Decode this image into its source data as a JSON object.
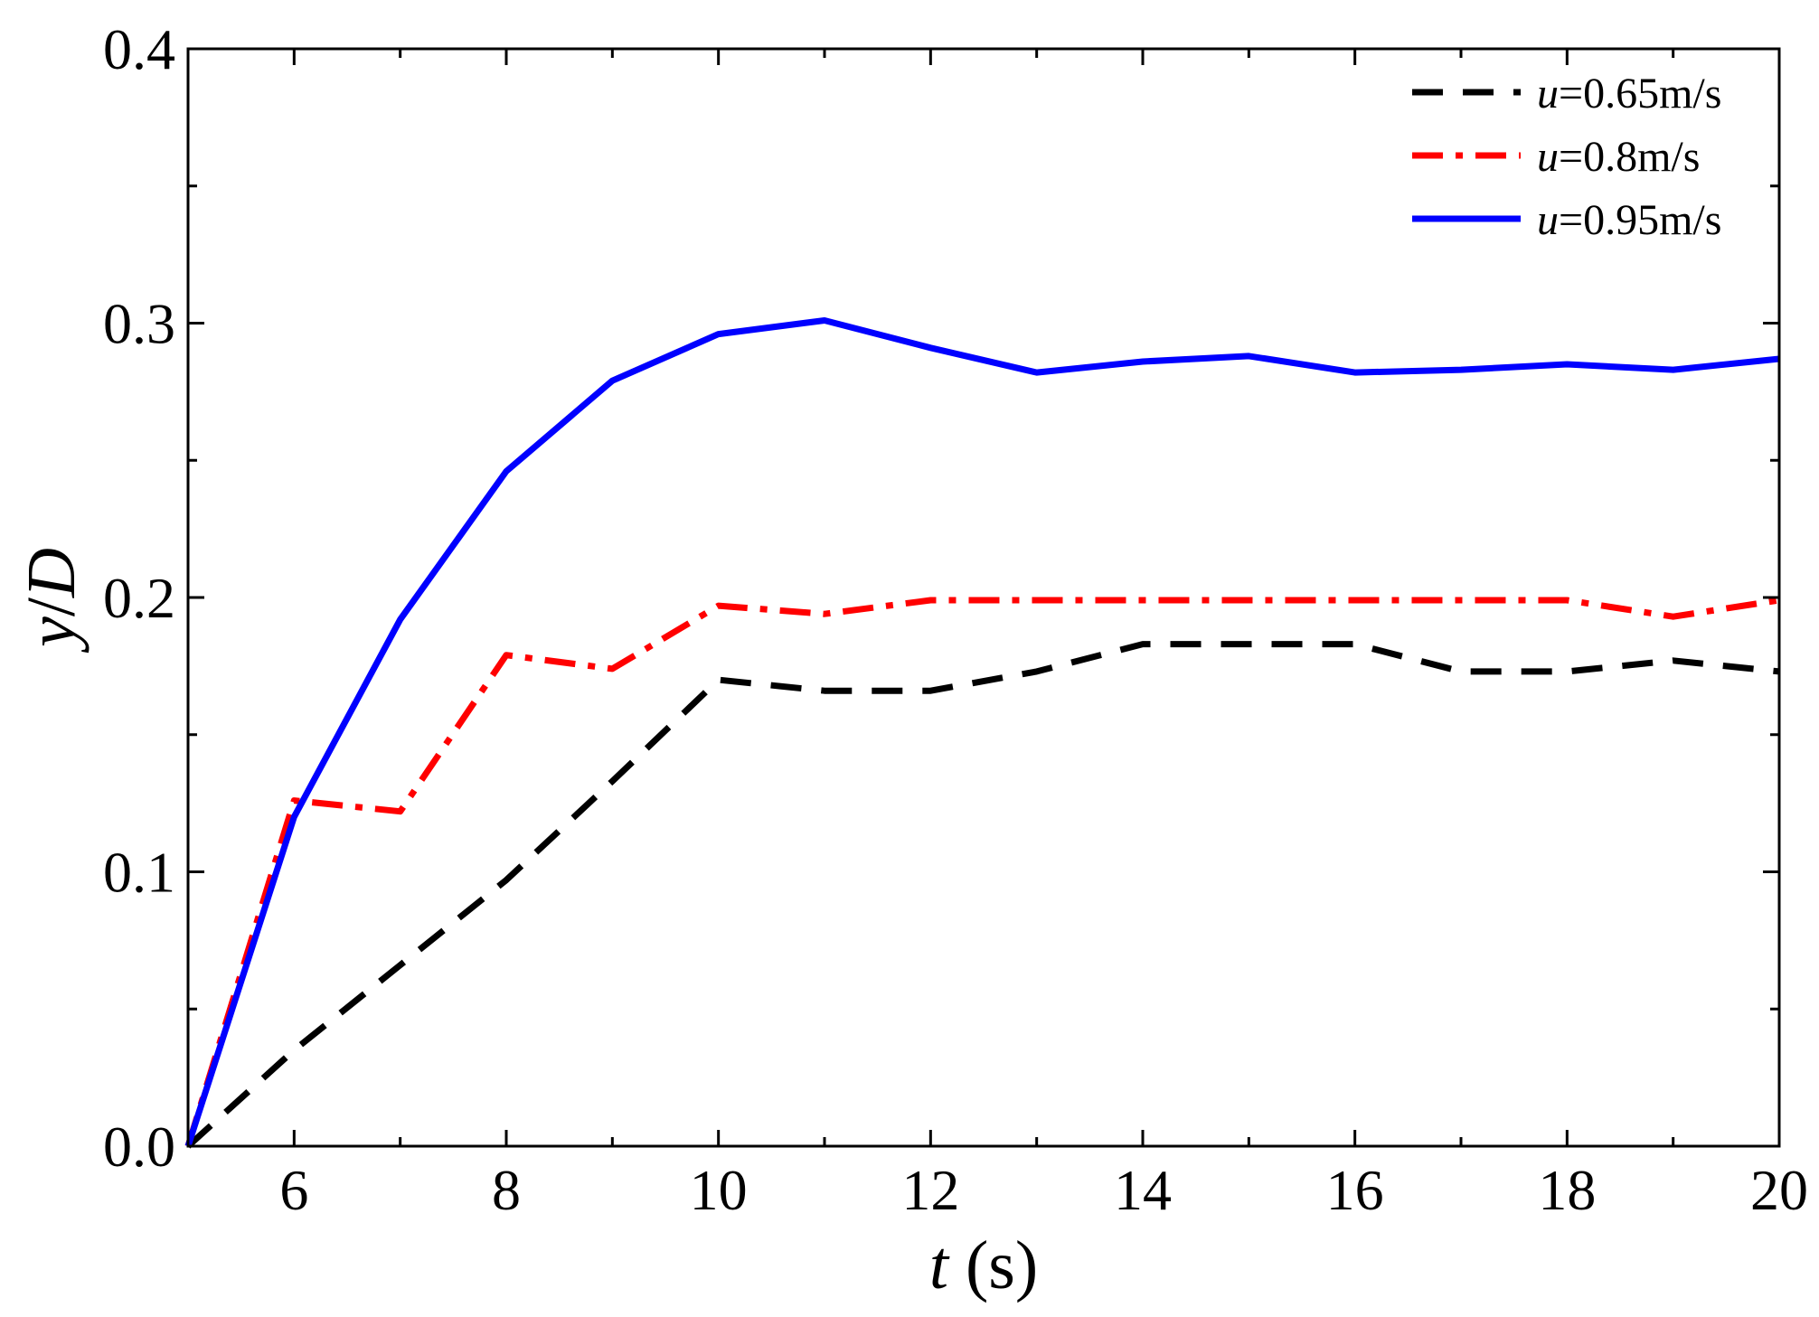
{
  "chart_data": {
    "type": "line",
    "title": "",
    "xlabel": {
      "var": "t",
      "unit": " (s)"
    },
    "ylabel": {
      "var1": "y",
      "sep": "/",
      "var2": "D"
    },
    "xlim": [
      5,
      20
    ],
    "ylim": [
      0,
      0.4
    ],
    "xticks": [
      6,
      8,
      10,
      12,
      14,
      16,
      18,
      20
    ],
    "xtick_labels": [
      "6",
      "8",
      "10",
      "12",
      "14",
      "16",
      "18",
      "20"
    ],
    "x_minor_ticks": [
      5,
      7,
      9,
      11,
      13,
      15,
      17,
      19
    ],
    "yticks": [
      0,
      0.1,
      0.2,
      0.3,
      0.4
    ],
    "ytick_labels": [
      "0.0",
      "0.1",
      "0.2",
      "0.3",
      "0.4"
    ],
    "y_minor_ticks": [
      0.05,
      0.15,
      0.25,
      0.35
    ],
    "grid": false,
    "legend_position": "top-right",
    "x": [
      5,
      6,
      7,
      8,
      9,
      10,
      11,
      12,
      13,
      14,
      15,
      16,
      17,
      18,
      19,
      20
    ],
    "series": [
      {
        "name": "u=0.65m/s",
        "name_var": "u",
        "name_rest": "=0.65m/s",
        "color": "#000000",
        "style": "dash",
        "values": [
          0.0,
          0.035,
          0.066,
          0.097,
          0.133,
          0.17,
          0.166,
          0.166,
          0.173,
          0.183,
          0.183,
          0.183,
          0.173,
          0.173,
          0.177,
          0.173
        ]
      },
      {
        "name": "u=0.8m/s",
        "name_var": "u",
        "name_rest": "=0.8m/s",
        "color": "#ff0000",
        "style": "dashdot",
        "values": [
          0.0,
          0.126,
          0.122,
          0.179,
          0.174,
          0.197,
          0.194,
          0.199,
          0.199,
          0.199,
          0.199,
          0.199,
          0.199,
          0.199,
          0.193,
          0.199
        ]
      },
      {
        "name": "u=0.95m/s",
        "name_var": "u",
        "name_rest": "=0.95m/s",
        "color": "#0000ff",
        "style": "solid",
        "values": [
          0.0,
          0.12,
          0.192,
          0.246,
          0.279,
          0.296,
          0.301,
          0.291,
          0.282,
          0.286,
          0.288,
          0.282,
          0.283,
          0.285,
          0.283,
          0.287
        ]
      }
    ]
  }
}
